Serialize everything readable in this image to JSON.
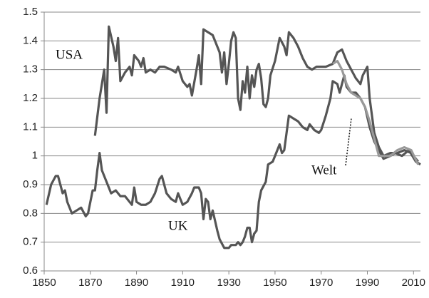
{
  "chart_data": {
    "type": "line",
    "annotations": [
      "USA",
      "UK",
      "Welt"
    ],
    "xlim": [
      1850,
      2013
    ],
    "xticks": [
      1850,
      1870,
      1890,
      1910,
      1930,
      1950,
      1970,
      1990,
      2010
    ],
    "ylim": [
      0.6,
      1.5
    ],
    "yticks": [
      0.6,
      0.7,
      0.8,
      0.9,
      1,
      1.1,
      1.2,
      1.3,
      1.4,
      1.5
    ],
    "grid": true,
    "series": [
      {
        "name": "USA",
        "color": "#555555",
        "x": [
          1872,
          1874,
          1876,
          1877,
          1878,
          1880,
          1881,
          1882,
          1883,
          1885,
          1887,
          1888,
          1889,
          1891,
          1892,
          1893,
          1894,
          1896,
          1898,
          1900,
          1902,
          1905,
          1907,
          1908,
          1910,
          1912,
          1913,
          1914,
          1916,
          1917,
          1918,
          1919,
          1921,
          1923,
          1925,
          1926,
          1927,
          1928,
          1929,
          1930,
          1931,
          1932,
          1933,
          1934,
          1935,
          1936,
          1937,
          1938,
          1939,
          1940,
          1941,
          1942,
          1943,
          1944,
          1945,
          1946,
          1947,
          1948,
          1950,
          1952,
          1954,
          1955,
          1956,
          1958,
          1960,
          1962,
          1964,
          1966,
          1968,
          1972,
          1975,
          1977,
          1979,
          1981,
          1983,
          1985,
          1987,
          1988,
          1990,
          1991,
          1993,
          1995,
          1997,
          2000,
          2003,
          2006,
          2009,
          2012
        ],
        "values": [
          1.07,
          1.2,
          1.3,
          1.15,
          1.45,
          1.38,
          1.33,
          1.41,
          1.26,
          1.29,
          1.31,
          1.28,
          1.35,
          1.33,
          1.31,
          1.34,
          1.29,
          1.3,
          1.29,
          1.31,
          1.31,
          1.3,
          1.29,
          1.31,
          1.26,
          1.24,
          1.25,
          1.21,
          1.3,
          1.35,
          1.25,
          1.44,
          1.43,
          1.42,
          1.38,
          1.36,
          1.29,
          1.36,
          1.25,
          1.32,
          1.4,
          1.43,
          1.41,
          1.2,
          1.16,
          1.26,
          1.22,
          1.31,
          1.2,
          1.28,
          1.24,
          1.3,
          1.32,
          1.27,
          1.18,
          1.17,
          1.2,
          1.28,
          1.33,
          1.41,
          1.38,
          1.35,
          1.43,
          1.41,
          1.38,
          1.34,
          1.31,
          1.3,
          1.31,
          1.31,
          1.32,
          1.36,
          1.37,
          1.33,
          1.3,
          1.27,
          1.25,
          1.28,
          1.31,
          1.2,
          1.08,
          1.03,
          1.0,
          1.01,
          1.01,
          1.02,
          1.01,
          0.98
        ]
      },
      {
        "name": "UK",
        "color": "#555555",
        "x": [
          1851,
          1853,
          1855,
          1856,
          1858,
          1859,
          1860,
          1862,
          1864,
          1866,
          1868,
          1869,
          1871,
          1872,
          1873,
          1874,
          1875,
          1877,
          1879,
          1881,
          1883,
          1885,
          1887,
          1888,
          1889,
          1890,
          1892,
          1894,
          1896,
          1898,
          1900,
          1901,
          1903,
          1905,
          1907,
          1908,
          1910,
          1912,
          1914,
          1915,
          1917,
          1918,
          1919,
          1920,
          1921,
          1922,
          1923,
          1925,
          1926,
          1928,
          1930,
          1931,
          1933,
          1934,
          1935,
          1936,
          1937,
          1938,
          1939,
          1940,
          1941,
          1942,
          1943,
          1944,
          1946,
          1947,
          1949,
          1951,
          1952,
          1953,
          1954,
          1956,
          1958,
          1960,
          1962,
          1964,
          1965,
          1967,
          1969,
          1970,
          1972,
          1974,
          1975,
          1977,
          1978,
          1979,
          1980,
          1981,
          1983,
          1985,
          1987,
          1989,
          1991,
          1993,
          1995,
          1997,
          2000,
          2002,
          2005,
          2008,
          2011,
          2013
        ],
        "values": [
          0.83,
          0.9,
          0.93,
          0.93,
          0.87,
          0.88,
          0.84,
          0.8,
          0.81,
          0.82,
          0.79,
          0.8,
          0.88,
          0.88,
          0.95,
          1.01,
          0.95,
          0.91,
          0.87,
          0.88,
          0.86,
          0.86,
          0.84,
          0.83,
          0.89,
          0.84,
          0.83,
          0.83,
          0.84,
          0.87,
          0.92,
          0.93,
          0.87,
          0.85,
          0.84,
          0.87,
          0.83,
          0.84,
          0.87,
          0.89,
          0.89,
          0.87,
          0.78,
          0.85,
          0.84,
          0.78,
          0.81,
          0.74,
          0.71,
          0.68,
          0.68,
          0.69,
          0.69,
          0.7,
          0.69,
          0.7,
          0.72,
          0.75,
          0.75,
          0.7,
          0.73,
          0.74,
          0.84,
          0.88,
          0.91,
          0.97,
          0.98,
          1.02,
          1.04,
          1.01,
          1.02,
          1.14,
          1.13,
          1.12,
          1.1,
          1.09,
          1.11,
          1.09,
          1.08,
          1.09,
          1.14,
          1.2,
          1.26,
          1.25,
          1.22,
          1.25,
          1.28,
          1.24,
          1.22,
          1.22,
          1.2,
          1.17,
          1.1,
          1.05,
          1.02,
          0.99,
          1.0,
          1.01,
          1.0,
          1.02,
          0.98,
          0.97
        ]
      },
      {
        "name": "Welt",
        "color": "#999999",
        "x": [
          1975,
          1977,
          1979,
          1981,
          1983,
          1985,
          1987,
          1989,
          1991,
          1993,
          1995,
          1997,
          2000,
          2003,
          2006,
          2009,
          2012
        ],
        "values": [
          1.32,
          1.33,
          1.3,
          1.25,
          1.22,
          1.21,
          1.2,
          1.17,
          1.12,
          1.06,
          1.0,
          1.0,
          1.0,
          1.02,
          1.03,
          1.02,
          0.97
        ]
      }
    ]
  }
}
